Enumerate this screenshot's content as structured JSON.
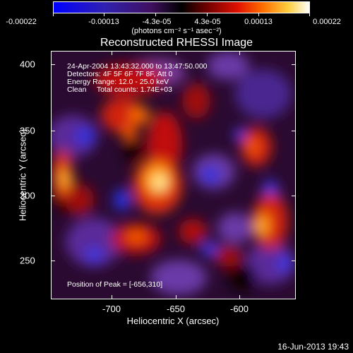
{
  "colorbar": {
    "tick_labels": [
      "-0.00022",
      "-0.00013",
      "-4.3e-05",
      "4.3e-05",
      "0.00013",
      "0.00022"
    ],
    "units": "(photons cm⁻² s⁻¹ asec⁻²)",
    "colormap": [
      "#0000ff",
      "#2020c0",
      "#402080",
      "#000000",
      "#601010",
      "#b00000",
      "#ff2000",
      "#ff8000",
      "#ffd040",
      "#ffffc0",
      "#ffffff"
    ]
  },
  "title": "Reconstructed RHESSI Image",
  "annotations": {
    "time": "24-Apr-2004 13:43:32.000 to 13:47:50.000",
    "detectors": "Detectors: 4F 5F 6F 7F 8F, Att 0",
    "energy": "Energy Range: 12.0 - 25.0 keV",
    "clean": "Clean     Total counts: 1.74E+03",
    "peak": "Position of Peak = [-656,310]"
  },
  "axes": {
    "ylabel": "Heliocentric Y (arcsec)",
    "xlabel": "Heliocentric X (arcsec)",
    "y_ticks": [
      "400",
      "350",
      "300",
      "250"
    ],
    "x_ticks": [
      "-700",
      "-650",
      "-600"
    ],
    "xlim": [
      -745,
      -643
    ],
    "ylim": [
      218,
      410
    ]
  },
  "footer": {
    "date": "16-Jun-2013 19:43"
  }
}
